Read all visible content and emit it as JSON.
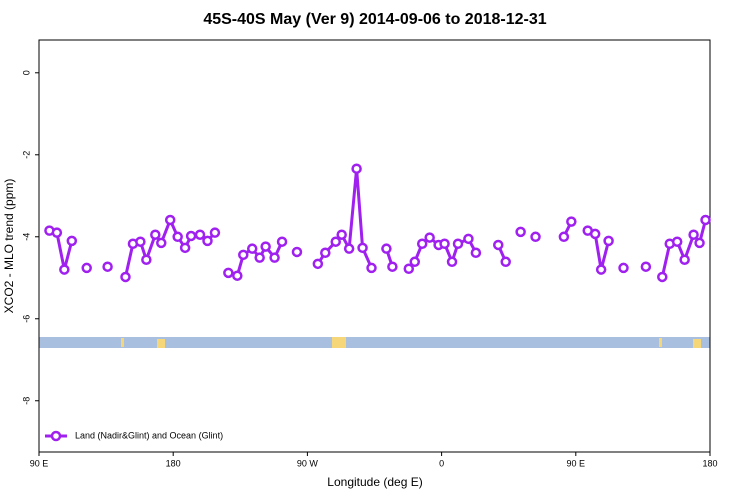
{
  "chart_data": {
    "type": "line",
    "title": "45S-40S May (Ver 9)   2014-09-06 to 2018-12-31",
    "x_label": "Longitude (deg E)",
    "y_label": "XCO2 - MLO trend (ppm)",
    "x": [
      97,
      102,
      107,
      112,
      null,
      122,
      null,
      136,
      null,
      148,
      153,
      158,
      162,
      168,
      172,
      178,
      183,
      188,
      192,
      198,
      203,
      208,
      null,
      217,
      223,
      227,
      233,
      238,
      242,
      248,
      253,
      null,
      263,
      null,
      277,
      282,
      289,
      293,
      298,
      303,
      307,
      313,
      null,
      323,
      327,
      null,
      338,
      342,
      347,
      352,
      358,
      362,
      367,
      371,
      378,
      383,
      null,
      398,
      403,
      null,
      413,
      null,
      423,
      null,
      442,
      447,
      null,
      458,
      463,
      467,
      472,
      null,
      482,
      null,
      497,
      null,
      508,
      513,
      518,
      523,
      529,
      533,
      537
    ],
    "series": [
      {
        "name": "Land (Nadir&Glint) and Ocean (Glint)",
        "color": "#a020f0",
        "values": [
          -3.85,
          -3.9,
          -4.8,
          -4.1,
          null,
          -4.76,
          null,
          -4.73,
          null,
          -4.98,
          -4.17,
          -4.12,
          -4.56,
          -3.95,
          -4.15,
          -3.59,
          -4.0,
          -4.27,
          -3.98,
          -3.95,
          -4.1,
          -3.9,
          null,
          -4.88,
          -4.95,
          -4.44,
          -4.29,
          -4.51,
          -4.24,
          -4.51,
          -4.12,
          null,
          -4.37,
          null,
          -4.66,
          -4.39,
          -4.12,
          -3.95,
          -4.29,
          -2.34,
          -4.27,
          -4.76,
          null,
          -4.29,
          -4.73,
          null,
          -4.78,
          -4.61,
          -4.17,
          -4.02,
          -4.2,
          -4.17,
          -4.61,
          -4.17,
          -4.05,
          -4.39,
          null,
          -4.2,
          -4.61,
          null,
          -3.88,
          null,
          -4.0,
          null,
          -4.0,
          -3.63,
          null,
          -3.85,
          -3.93,
          -4.8,
          -4.1,
          null,
          -4.76,
          null,
          -4.73,
          null,
          -4.98,
          -4.17,
          -4.12,
          -4.56,
          -3.95,
          -4.15,
          -3.59
        ]
      }
    ],
    "xlim": [
      90,
      540
    ],
    "xticks": [
      {
        "value": 90,
        "label": "90 E"
      },
      180,
      {
        "value": 270,
        "label": "90 W"
      },
      {
        "value": 360,
        "label": "0"
      },
      {
        "value": 450,
        "label": "90 E"
      },
      {
        "value": 540,
        "label": "180"
      }
    ],
    "ylim": [
      -9.25,
      0.8
    ],
    "yticks": [
      0,
      -2,
      -4,
      -6,
      -8
    ],
    "legend": "lower left"
  }
}
